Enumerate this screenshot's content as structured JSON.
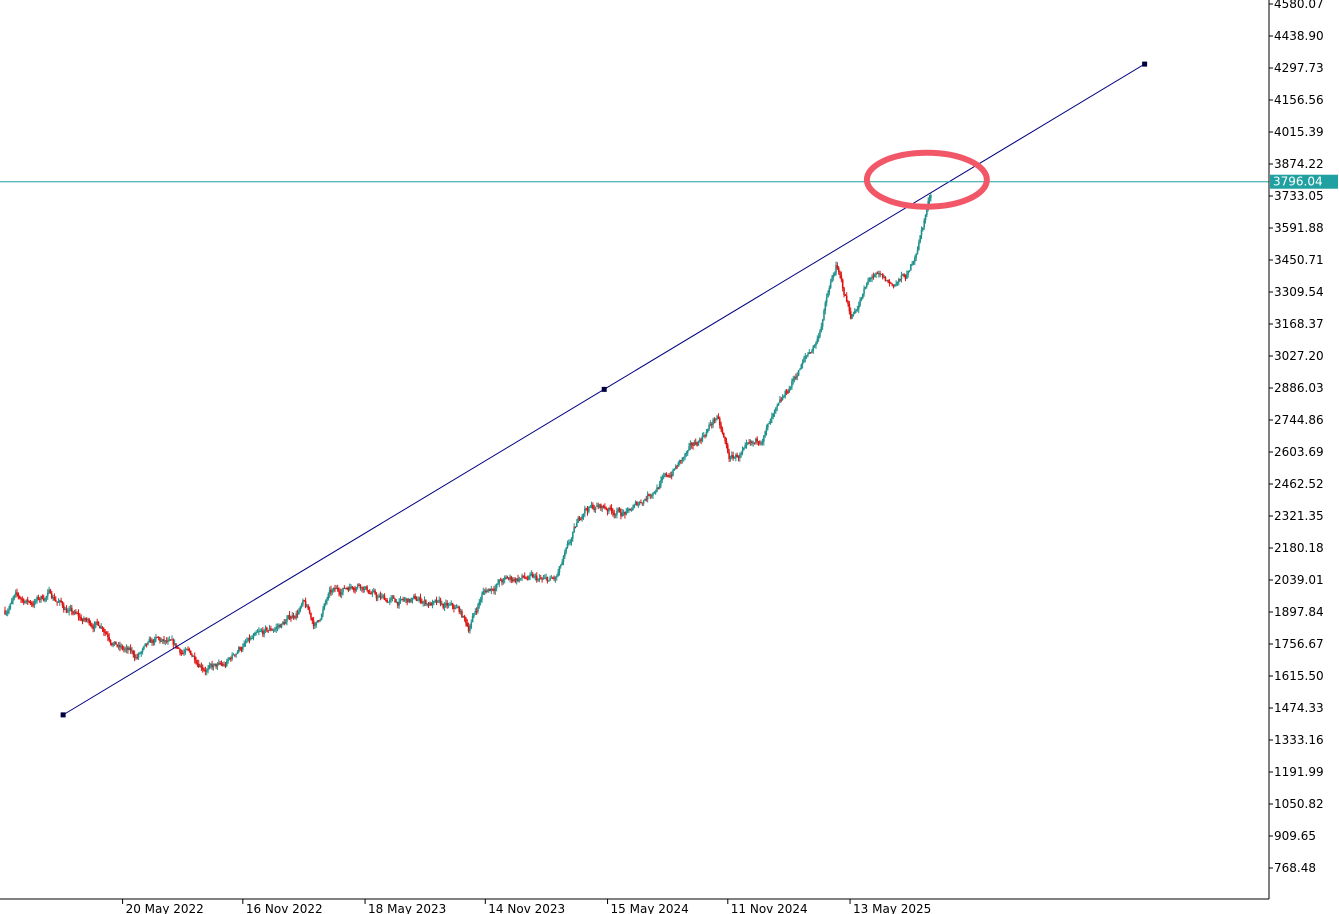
{
  "chart_data": {
    "type": "candlestick",
    "symbol_text": "",
    "y_axis": {
      "min": 627.31,
      "max": 4580.07,
      "ticks": [
        "768.48",
        "909.65",
        "1050.82",
        "1191.99",
        "1333.16",
        "1474.33",
        "1615.50",
        "1756.67",
        "1897.84",
        "2039.01",
        "2180.18",
        "2321.35",
        "2462.52",
        "2603.69",
        "2744.86",
        "2886.03",
        "3027.20",
        "3168.37",
        "3309.54",
        "3450.71",
        "3591.88",
        "3733.05",
        "3874.22",
        "4015.39",
        "4156.56",
        "4297.73",
        "4438.90",
        "4580.07"
      ]
    },
    "x_axis": {
      "start_date": "2021-11-25",
      "end_date": "2026-08-20",
      "ticks": [
        "20 May 2022",
        "16 Nov 2022",
        "18 May 2023",
        "14 Nov 2023",
        "15 May 2024",
        "11 Nov 2024",
        "13 May 2025"
      ]
    },
    "current_price": {
      "value": 3796.04,
      "label": "3796.04"
    },
    "trendline": {
      "points": [
        {
          "date": "2022-02-20",
          "price": 1444
        },
        {
          "date": "2024-05-10",
          "price": 2880
        },
        {
          "date": "2026-07-28",
          "price": 4315
        }
      ]
    },
    "highlight_circle": {
      "date": "2025-09-05",
      "price": 3805
    },
    "price_path": [
      {
        "date": "2021-11-25",
        "price": 1905
      },
      {
        "date": "2021-12-10",
        "price": 1960
      },
      {
        "date": "2022-01-05",
        "price": 1940
      },
      {
        "date": "2022-02-01",
        "price": 1980
      },
      {
        "date": "2022-02-25",
        "price": 1910
      },
      {
        "date": "2022-03-20",
        "price": 1860
      },
      {
        "date": "2022-04-20",
        "price": 1840
      },
      {
        "date": "2022-05-15",
        "price": 1740
      },
      {
        "date": "2022-06-10",
        "price": 1700
      },
      {
        "date": "2022-07-10",
        "price": 1770
      },
      {
        "date": "2022-08-05",
        "price": 1740
      },
      {
        "date": "2022-09-05",
        "price": 1700
      },
      {
        "date": "2022-09-25",
        "price": 1650
      },
      {
        "date": "2022-10-20",
        "price": 1655
      },
      {
        "date": "2022-11-10",
        "price": 1740
      },
      {
        "date": "2022-12-15",
        "price": 1795
      },
      {
        "date": "2023-01-20",
        "price": 1855
      },
      {
        "date": "2023-02-15",
        "price": 1930
      },
      {
        "date": "2023-03-05",
        "price": 1835
      },
      {
        "date": "2023-03-25",
        "price": 1970
      },
      {
        "date": "2023-04-20",
        "price": 2010
      },
      {
        "date": "2023-05-10",
        "price": 2030
      },
      {
        "date": "2023-06-05",
        "price": 1960
      },
      {
        "date": "2023-07-10",
        "price": 1940
      },
      {
        "date": "2023-08-10",
        "price": 1950
      },
      {
        "date": "2023-09-10",
        "price": 1920
      },
      {
        "date": "2023-10-05",
        "price": 1905
      },
      {
        "date": "2023-10-20",
        "price": 1830
      },
      {
        "date": "2023-11-10",
        "price": 1980
      },
      {
        "date": "2023-12-05",
        "price": 2030
      },
      {
        "date": "2024-01-05",
        "price": 2050
      },
      {
        "date": "2024-02-10",
        "price": 2030
      },
      {
        "date": "2024-02-28",
        "price": 2040
      },
      {
        "date": "2024-03-15",
        "price": 2160
      },
      {
        "date": "2024-04-10",
        "price": 2360
      },
      {
        "date": "2024-05-10",
        "price": 2360
      },
      {
        "date": "2024-06-15",
        "price": 2330
      },
      {
        "date": "2024-07-15",
        "price": 2420
      },
      {
        "date": "2024-08-15",
        "price": 2500
      },
      {
        "date": "2024-09-25",
        "price": 2640
      },
      {
        "date": "2024-10-25",
        "price": 2760
      },
      {
        "date": "2024-11-14",
        "price": 2570
      },
      {
        "date": "2024-12-20",
        "price": 2620
      },
      {
        "date": "2025-01-25",
        "price": 2780
      },
      {
        "date": "2025-02-20",
        "price": 2940
      },
      {
        "date": "2025-03-25",
        "price": 3100
      },
      {
        "date": "2025-04-10",
        "price": 3300
      },
      {
        "date": "2025-04-22",
        "price": 3420
      },
      {
        "date": "2025-05-15",
        "price": 3200
      },
      {
        "date": "2025-06-15",
        "price": 3380
      },
      {
        "date": "2025-07-15",
        "price": 3340
      },
      {
        "date": "2025-08-10",
        "price": 3390
      },
      {
        "date": "2025-08-28",
        "price": 3580
      },
      {
        "date": "2025-09-12",
        "price": 3760
      }
    ]
  }
}
